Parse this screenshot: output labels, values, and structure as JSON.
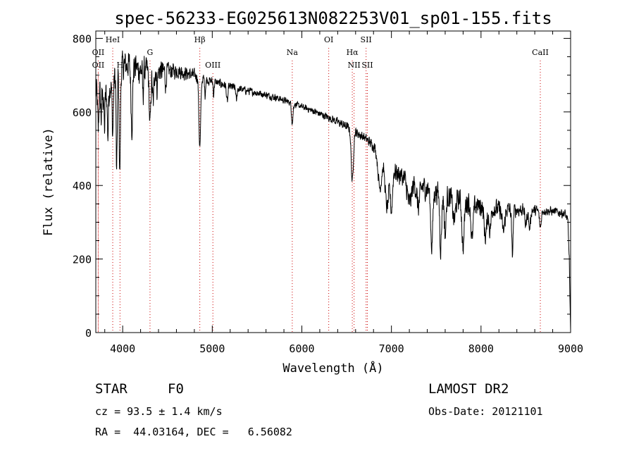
{
  "chart_data": {
    "type": "line",
    "title": "spec-56233-EG025613N082253V01_sp01-155.fits",
    "xlabel": "Wavelength (Å)",
    "ylabel": "Flux (relative)",
    "xlim": [
      3700,
      9000
    ],
    "ylim": [
      0,
      820
    ],
    "xticks": [
      4000,
      5000,
      6000,
      7000,
      8000,
      9000
    ],
    "yticks": [
      0,
      200,
      400,
      600,
      800
    ],
    "grid": false,
    "line_color": "#000000",
    "marker_color": "#cc0000",
    "continuum": [
      [
        3700,
        650
      ],
      [
        3800,
        640
      ],
      [
        3900,
        690
      ],
      [
        4000,
        725
      ],
      [
        4100,
        730
      ],
      [
        4200,
        712
      ],
      [
        4300,
        712
      ],
      [
        4400,
        712
      ],
      [
        4500,
        712
      ],
      [
        4600,
        712
      ],
      [
        4700,
        705
      ],
      [
        4800,
        700
      ],
      [
        4900,
        690
      ],
      [
        5000,
        683
      ],
      [
        5100,
        676
      ],
      [
        5300,
        662
      ],
      [
        5500,
        652
      ],
      [
        5700,
        640
      ],
      [
        5900,
        623
      ],
      [
        6100,
        605
      ],
      [
        6300,
        585
      ],
      [
        6500,
        560
      ],
      [
        6600,
        545
      ],
      [
        6700,
        530
      ],
      [
        6800,
        508
      ],
      [
        6900,
        475
      ],
      [
        7000,
        445
      ],
      [
        7200,
        410
      ],
      [
        7500,
        382
      ],
      [
        7800,
        358
      ],
      [
        8000,
        343
      ],
      [
        8200,
        336
      ],
      [
        8500,
        333
      ],
      [
        8800,
        330
      ],
      [
        8940,
        323
      ],
      [
        8970,
        300
      ],
      [
        8985,
        200
      ],
      [
        8995,
        60
      ],
      [
        9000,
        5
      ]
    ],
    "absorption_features": [
      {
        "x": 3727,
        "depth": 100,
        "width": 6
      },
      {
        "x": 3760,
        "depth": 60,
        "width": 5
      },
      {
        "x": 3797,
        "depth": 90,
        "width": 5
      },
      {
        "x": 3835,
        "depth": 120,
        "width": 6
      },
      {
        "x": 3889,
        "depth": 140,
        "width": 7
      },
      {
        "x": 3933,
        "depth": 270,
        "width": 6
      },
      {
        "x": 3968,
        "depth": 280,
        "width": 7
      },
      {
        "x": 4102,
        "depth": 170,
        "width": 9
      },
      {
        "x": 4227,
        "depth": 70,
        "width": 5
      },
      {
        "x": 4305,
        "depth": 150,
        "width": 9
      },
      {
        "x": 4340,
        "depth": 90,
        "width": 8
      },
      {
        "x": 4384,
        "depth": 50,
        "width": 6
      },
      {
        "x": 4481,
        "depth": 50,
        "width": 5
      },
      {
        "x": 4861,
        "depth": 190,
        "width": 10
      },
      {
        "x": 4920,
        "depth": 40,
        "width": 5
      },
      {
        "x": 5015,
        "depth": 35,
        "width": 5
      },
      {
        "x": 5167,
        "depth": 45,
        "width": 8
      },
      {
        "x": 5270,
        "depth": 35,
        "width": 6
      },
      {
        "x": 5893,
        "depth": 55,
        "width": 8
      },
      {
        "x": 6563,
        "depth": 140,
        "width": 12
      },
      {
        "x": 6870,
        "depth": 90,
        "width": 20
      },
      {
        "x": 6950,
        "depth": 120,
        "width": 20
      },
      {
        "x": 7000,
        "depth": 110,
        "width": 12
      },
      {
        "x": 7200,
        "depth": 60,
        "width": 22
      },
      {
        "x": 7300,
        "depth": 60,
        "width": 15
      },
      {
        "x": 7450,
        "depth": 150,
        "width": 12
      },
      {
        "x": 7550,
        "depth": 150,
        "width": 10
      },
      {
        "x": 7600,
        "depth": 110,
        "width": 10
      },
      {
        "x": 7700,
        "depth": 60,
        "width": 15
      },
      {
        "x": 7800,
        "depth": 130,
        "width": 12
      },
      {
        "x": 7900,
        "depth": 100,
        "width": 12
      },
      {
        "x": 8050,
        "depth": 80,
        "width": 15
      },
      {
        "x": 8100,
        "depth": 60,
        "width": 12
      },
      {
        "x": 8250,
        "depth": 60,
        "width": 15
      },
      {
        "x": 8350,
        "depth": 120,
        "width": 8
      },
      {
        "x": 8500,
        "depth": 40,
        "width": 10
      },
      {
        "x": 8542,
        "depth": 50,
        "width": 10
      },
      {
        "x": 8662,
        "depth": 45,
        "width": 10
      }
    ],
    "noise_amplitude": [
      [
        3700,
        55
      ],
      [
        4300,
        45
      ],
      [
        4500,
        28
      ],
      [
        5000,
        15
      ],
      [
        6000,
        10
      ],
      [
        6800,
        18
      ],
      [
        7200,
        40
      ],
      [
        8000,
        35
      ],
      [
        8700,
        15
      ],
      [
        9000,
        15
      ]
    ],
    "spectral_lines": [
      {
        "name": "OII",
        "x": 3727,
        "row": 2
      },
      {
        "name": "HeI",
        "x": 3889,
        "row": 1
      },
      {
        "name": "OII",
        "x": 3727,
        "row": 3
      },
      {
        "name": "H",
        "x": 3970,
        "row": 3
      },
      {
        "name": "G",
        "x": 4305,
        "row": 2
      },
      {
        "name": "Hβ",
        "x": 4861,
        "row": 1
      },
      {
        "name": "OIII",
        "x": 5007,
        "row": 3
      },
      {
        "name": "Na",
        "x": 5893,
        "row": 2
      },
      {
        "name": "OI",
        "x": 6300,
        "row": 1
      },
      {
        "name": "Hα",
        "x": 6563,
        "row": 2
      },
      {
        "name": "SII",
        "x": 6717,
        "row": 1
      },
      {
        "name": "NII",
        "x": 6583,
        "row": 3
      },
      {
        "name": "SII",
        "x": 6731,
        "row": 3
      },
      {
        "name": "CaII",
        "x": 8662,
        "row": 2
      }
    ]
  },
  "info": {
    "object_class": "STAR",
    "subclass": "F0",
    "survey": "LAMOST DR2",
    "redshift_line": "cz = 93.5 ± 1.4 km/s",
    "obs_date": "Obs-Date: 20121101",
    "coords": "RA =  44.03164, DEC =   6.56082"
  }
}
